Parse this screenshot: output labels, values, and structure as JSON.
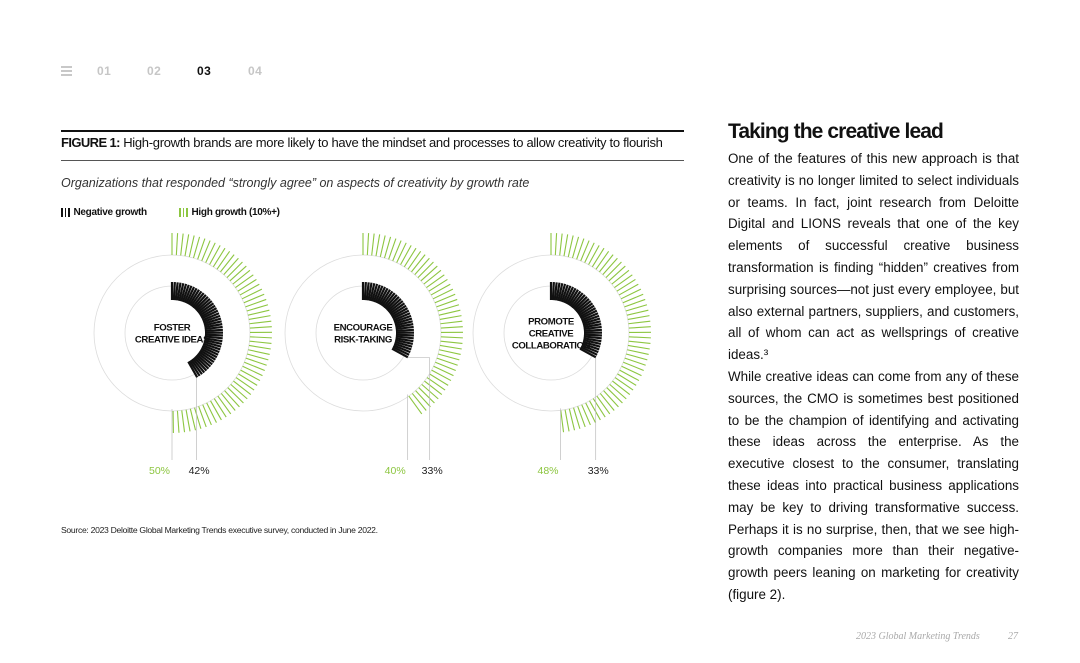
{
  "nav": {
    "menu_icon": "menu-icon",
    "pages": [
      {
        "label": "01",
        "active": false
      },
      {
        "label": "02",
        "active": false
      },
      {
        "label": "03",
        "active": true
      },
      {
        "label": "04",
        "active": false
      }
    ]
  },
  "figure": {
    "label": "FIGURE 1:",
    "title": "High-growth brands are more likely to have the mindset and processes to allow creativity to flourish",
    "subtitle": "Organizations that responded “strongly agree” on aspects of creativity by growth rate",
    "source": "Source: 2023 Deloitte Global Marketing Trends executive survey, conducted in June 2022."
  },
  "chart_data": {
    "type": "radial-bar",
    "colors": {
      "negative": "#111111",
      "high": "#8dc641"
    },
    "legend": [
      "Negative growth",
      "High growth (10%+)"
    ],
    "legend_position": "top-left",
    "series": [
      {
        "name": "Negative growth",
        "values": [
          42,
          33,
          33
        ]
      },
      {
        "name": "High growth (10%+)",
        "values": [
          50,
          40,
          48
        ]
      }
    ],
    "categories": [
      {
        "lines": [
          "FOSTER",
          "CREATIVE IDEAS"
        ],
        "high": 50,
        "negative": 42,
        "high_label": "50%",
        "negative_label": "42%"
      },
      {
        "lines": [
          "ENCOURAGE",
          "RISK-TAKING"
        ],
        "high": 40,
        "negative": 33,
        "high_label": "40%",
        "negative_label": "33%"
      },
      {
        "lines": [
          "PROMOTE",
          "CREATIVE",
          "COLLABORATION"
        ],
        "high": 48,
        "negative": 33,
        "high_label": "48%",
        "negative_label": "33%"
      }
    ]
  },
  "article": {
    "heading": "Taking the creative lead",
    "para1": "One of the features of this new approach is that creativity is no longer limited to select individuals or teams. In fact, joint research from Deloitte Digital and LIONS reveals that one of the key elements of successful creative business transformation is finding “hidden” creatives from surprising sources—not just every employee, but also external partners, suppliers, and customers, all of whom can act as wellsprings of creative ideas.³",
    "para2": "While creative ideas can come from any of these sources, the CMO is sometimes best positioned to be the champion of identifying and activating these ideas across the enterprise. As the executive closest to the consumer, translating these ideas into practical business applications may be key to driving transformative success. Perhaps it is no surprise, then, that we see high-growth companies more than their negative-growth peers leaning on marketing for creativity (figure 2)."
  },
  "footer": {
    "publication": "2023 Global Marketing Trends",
    "page_number": "27"
  }
}
